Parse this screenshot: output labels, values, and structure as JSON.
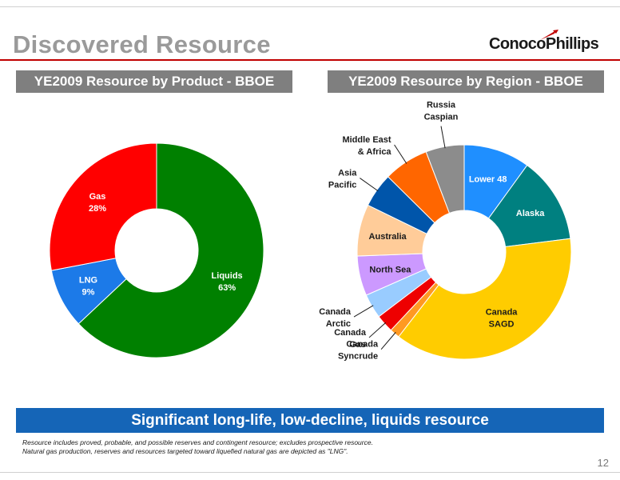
{
  "page": {
    "title": "Discovered Resource",
    "logo": "ConocoPhillips",
    "banner": "Significant long-life, low-decline, liquids resource",
    "footnote_1": "Resource includes proved, probable, and possible reserves and contingent resource; excludes prospective resource.",
    "footnote_2": "Natural gas production, reserves and resources targeted toward liquefied natural gas are depicted as \"LNG\".",
    "page_number": "12"
  },
  "colors": {
    "title_gray": "#9a9a9a",
    "accent_red": "#c00000",
    "header_gray": "#7f7f7f",
    "banner_blue": "#1565b7"
  },
  "chart_data": [
    {
      "type": "pie",
      "donut": true,
      "title": "YE2009 Resource by Product - BBOE",
      "slices": [
        {
          "label": "Liquids",
          "value": 63,
          "value_label": "63%",
          "color": "#008000"
        },
        {
          "label": "LNG",
          "value": 9,
          "value_label": "9%",
          "color": "#1c7ae8"
        },
        {
          "label": "Gas",
          "value": 28,
          "value_label": "28%",
          "color": "#ff0000"
        }
      ]
    },
    {
      "type": "pie",
      "donut": true,
      "title": "YE2009 Resource by Region - BBOE",
      "slices": [
        {
          "label": "Lower 48",
          "value": 10,
          "color": "#1f8fff"
        },
        {
          "label": "Alaska",
          "value": 13,
          "color": "#008080"
        },
        {
          "label": "Canada SAGD",
          "value": 37.5,
          "color": "#ffcc00"
        },
        {
          "label": "Canada Syncrude",
          "value": 1.5,
          "color": "#ff9922"
        },
        {
          "label": "Canada Gas",
          "value": 2.7,
          "color": "#ee0000"
        },
        {
          "label": "Canada Arctic",
          "value": 3.7,
          "color": "#99ccff"
        },
        {
          "label": "North Sea",
          "value": 6,
          "color": "#cc99ff"
        },
        {
          "label": "Australia",
          "value": 7.8,
          "color": "#ffcc99"
        },
        {
          "label": "Asia Pacific",
          "value": 5.2,
          "color": "#0055aa"
        },
        {
          "label": "Middle East & Africa",
          "value": 6.8,
          "color": "#ff6600"
        },
        {
          "label": "Russia Caspian",
          "value": 5.8,
          "color": "#8c8c8c"
        }
      ]
    }
  ]
}
